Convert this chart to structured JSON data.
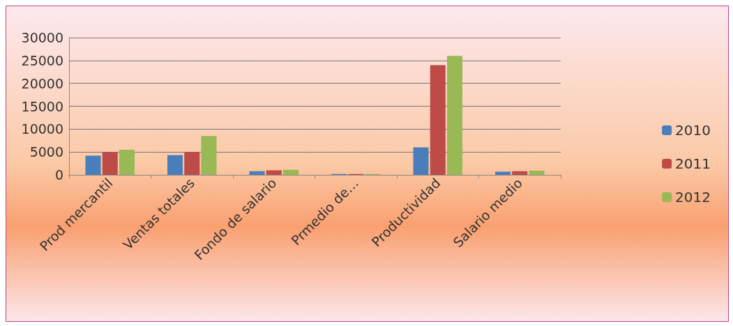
{
  "chart_data": {
    "type": "bar",
    "categories": [
      "Prod mercantil",
      "Ventas totales",
      "Fondo de salario",
      "Prmedio de…",
      "Productividad",
      "Salario medio"
    ],
    "series": [
      {
        "name": "2010",
        "color": "#4a7ebb",
        "values": [
          4200,
          4300,
          800,
          200,
          6000,
          700
        ]
      },
      {
        "name": "2011",
        "color": "#be4b48",
        "values": [
          5000,
          5000,
          1000,
          200,
          24000,
          800
        ]
      },
      {
        "name": "2012",
        "color": "#98b954",
        "values": [
          5500,
          8500,
          1100,
          200,
          26000,
          900
        ]
      }
    ],
    "ylim": [
      0,
      30000
    ],
    "yticks": [
      0,
      5000,
      10000,
      15000,
      20000,
      25000,
      30000
    ],
    "grid": "y",
    "legend": "right"
  }
}
